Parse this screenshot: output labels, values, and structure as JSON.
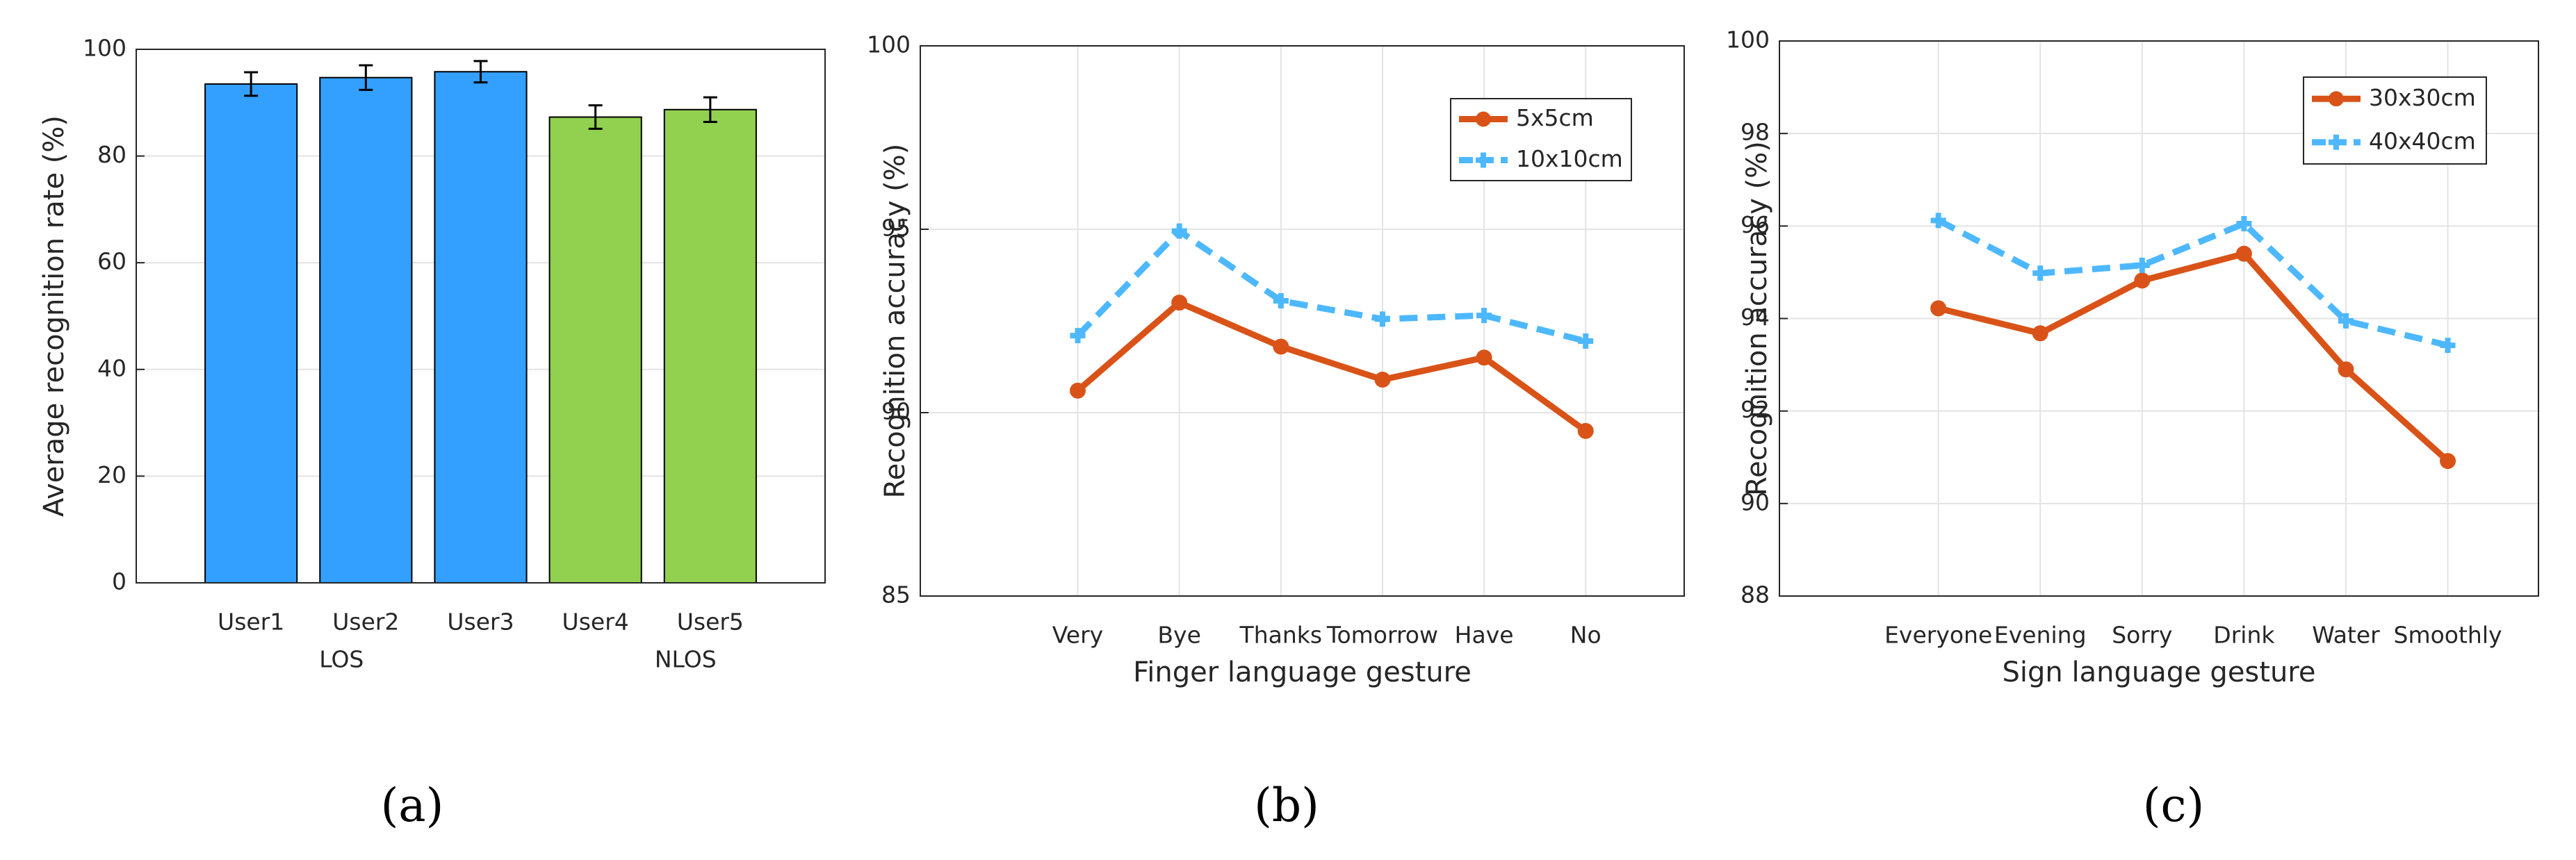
{
  "chart_data": [
    {
      "type": "bar",
      "subtitle": "(a)",
      "ylabel": "Average recognition rate (%)",
      "categories": [
        "User1",
        "User2",
        "User3",
        "User4",
        "User5"
      ],
      "values": [
        93.5,
        94.7,
        95.8,
        87.3,
        88.7
      ],
      "errors": [
        2.2,
        2.3,
        2.0,
        2.2,
        2.3
      ],
      "colors": [
        "#33a0ff",
        "#33a0ff",
        "#33a0ff",
        "#92d050",
        "#92d050"
      ],
      "group_labels": [
        "LOS",
        "NLOS"
      ],
      "ylim": [
        0,
        100
      ],
      "yticks": [
        0,
        20,
        40,
        60,
        80,
        100
      ],
      "grid": true
    },
    {
      "type": "line",
      "subtitle": "(b)",
      "xlabel": "Finger language gesture",
      "ylabel": "Recognition accuracy (%)",
      "categories": [
        "Very",
        "Bye",
        "Thanks",
        "Tomorrow",
        "Have",
        "No"
      ],
      "series": [
        {
          "name": "5x5cm",
          "color": "#d95319",
          "values": [
            90.6,
            93.0,
            91.8,
            90.9,
            91.5,
            89.5
          ]
        },
        {
          "name": "10x10cm",
          "color": "#4db8ff",
          "values": [
            92.1,
            94.95,
            93.05,
            92.55,
            92.65,
            91.95
          ]
        }
      ],
      "ylim": [
        85,
        100
      ],
      "yticks": [
        85,
        90,
        95,
        100
      ],
      "grid": true,
      "legend": "upper right"
    },
    {
      "type": "line",
      "subtitle": "(c)",
      "xlabel": "Sign language gesture",
      "ylabel": "Recognition accuracy (%)",
      "categories": [
        "Everyone",
        "Evening",
        "Sorry",
        "Drink",
        "Water",
        "Smoothly"
      ],
      "series": [
        {
          "name": "30x30cm",
          "color": "#d95319",
          "values": [
            94.22,
            93.68,
            94.82,
            95.4,
            92.9,
            90.92
          ]
        },
        {
          "name": "40x40cm",
          "color": "#4db8ff",
          "values": [
            96.12,
            94.98,
            95.15,
            96.05,
            93.95,
            93.42
          ]
        }
      ],
      "ylim": [
        88,
        100
      ],
      "yticks": [
        88,
        90,
        92,
        94,
        96,
        98,
        100
      ],
      "grid": true,
      "legend": "upper right"
    }
  ]
}
